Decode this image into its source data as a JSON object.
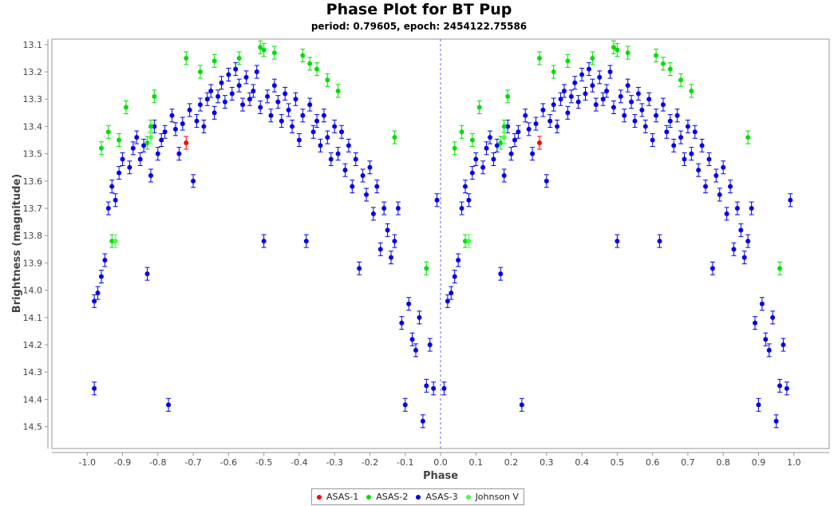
{
  "chart_data": {
    "type": "scatter",
    "title": "Phase Plot for BT Pup",
    "subtitle": "period: 0.79605, epoch: 2454122.75586",
    "xlabel": "Phase",
    "ylabel": "Brightness (magnitude)",
    "xlim": [
      -1.1,
      1.1
    ],
    "ylim": [
      14.58,
      13.08
    ],
    "y_inverted": true,
    "x_ticks": [
      -1.0,
      -0.9,
      -0.8,
      -0.7,
      -0.6,
      -0.5,
      -0.4,
      -0.3,
      -0.2,
      -0.1,
      0.0,
      0.1,
      0.2,
      0.3,
      0.4,
      0.5,
      0.6,
      0.7,
      0.8,
      0.9,
      1.0
    ],
    "x_tick_labels": [
      "-1.0",
      "-0.9",
      "-0.8",
      "-0.7",
      "-0.6",
      "-0.5",
      "-0.4",
      "-0.3",
      "-0.2",
      "-0.1",
      "0.0",
      "0.1",
      "0.2",
      "0.3",
      "0.4",
      "0.5",
      "0.6",
      "0.7",
      "0.8",
      "0.9",
      "1.0"
    ],
    "y_ticks": [
      13.1,
      13.2,
      13.3,
      13.4,
      13.5,
      13.6,
      13.7,
      13.8,
      13.9,
      14.0,
      14.1,
      14.2,
      14.3,
      14.4,
      14.5
    ],
    "y_tick_labels": [
      "13.1",
      "13.2",
      "13.3",
      "13.4",
      "13.5",
      "13.6",
      "13.7",
      "13.8",
      "13.9",
      "14.0",
      "14.1",
      "14.2",
      "14.3",
      "14.4",
      "14.5"
    ],
    "reference_line_x": 0.0,
    "grid": false,
    "legend_position": "bottom-center",
    "series": [
      {
        "name": "ASAS-1",
        "color": "#ff0000",
        "points": [
          [
            -0.72,
            13.46
          ],
          [
            0.28,
            13.46
          ]
        ]
      },
      {
        "name": "ASAS-2",
        "color": "#00e000",
        "points": [
          [
            -0.96,
            13.48
          ],
          [
            -0.94,
            13.42
          ],
          [
            -0.93,
            13.82
          ],
          [
            -0.91,
            13.45
          ],
          [
            -0.89,
            13.33
          ],
          [
            -0.83,
            13.46
          ],
          [
            -0.82,
            13.4
          ],
          [
            -0.81,
            13.29
          ],
          [
            -0.72,
            13.15
          ],
          [
            -0.68,
            13.2
          ],
          [
            -0.64,
            13.16
          ],
          [
            -0.57,
            13.15
          ],
          [
            -0.51,
            13.11
          ],
          [
            -0.5,
            13.12
          ],
          [
            -0.47,
            13.13
          ],
          [
            -0.39,
            13.14
          ],
          [
            -0.37,
            13.17
          ],
          [
            -0.35,
            13.19
          ],
          [
            -0.32,
            13.23
          ],
          [
            -0.29,
            13.27
          ],
          [
            -0.13,
            13.44
          ],
          [
            -0.04,
            13.92
          ],
          [
            0.04,
            13.48
          ],
          [
            0.06,
            13.42
          ],
          [
            0.07,
            13.82
          ],
          [
            0.09,
            13.45
          ],
          [
            0.11,
            13.33
          ],
          [
            0.17,
            13.46
          ],
          [
            0.18,
            13.4
          ],
          [
            0.19,
            13.29
          ],
          [
            0.28,
            13.15
          ],
          [
            0.32,
            13.2
          ],
          [
            0.36,
            13.16
          ],
          [
            0.43,
            13.15
          ],
          [
            0.49,
            13.11
          ],
          [
            0.5,
            13.12
          ],
          [
            0.53,
            13.13
          ],
          [
            0.61,
            13.14
          ],
          [
            0.63,
            13.17
          ],
          [
            0.65,
            13.19
          ],
          [
            0.68,
            13.23
          ],
          [
            0.71,
            13.27
          ],
          [
            0.87,
            13.44
          ],
          [
            0.96,
            13.92
          ]
        ]
      },
      {
        "name": "ASAS-3",
        "color": "#0000ee",
        "points": [
          [
            -0.98,
            14.36
          ],
          [
            -0.98,
            14.04
          ],
          [
            -0.97,
            14.01
          ],
          [
            -0.96,
            13.95
          ],
          [
            -0.95,
            13.89
          ],
          [
            -0.94,
            13.7
          ],
          [
            -0.93,
            13.62
          ],
          [
            -0.92,
            13.67
          ],
          [
            -0.91,
            13.57
          ],
          [
            -0.9,
            13.52
          ],
          [
            -0.88,
            13.55
          ],
          [
            -0.87,
            13.48
          ],
          [
            -0.86,
            13.44
          ],
          [
            -0.85,
            13.52
          ],
          [
            -0.84,
            13.47
          ],
          [
            -0.83,
            13.94
          ],
          [
            -0.82,
            13.58
          ],
          [
            -0.81,
            13.4
          ],
          [
            -0.8,
            13.5
          ],
          [
            -0.79,
            13.45
          ],
          [
            -0.78,
            13.42
          ],
          [
            -0.77,
            14.42
          ],
          [
            -0.76,
            13.36
          ],
          [
            -0.75,
            13.41
          ],
          [
            -0.74,
            13.5
          ],
          [
            -0.73,
            13.39
          ],
          [
            -0.71,
            13.34
          ],
          [
            -0.7,
            13.6
          ],
          [
            -0.69,
            13.38
          ],
          [
            -0.68,
            13.32
          ],
          [
            -0.67,
            13.4
          ],
          [
            -0.66,
            13.3
          ],
          [
            -0.65,
            13.27
          ],
          [
            -0.64,
            13.35
          ],
          [
            -0.63,
            13.29
          ],
          [
            -0.62,
            13.24
          ],
          [
            -0.61,
            13.31
          ],
          [
            -0.6,
            13.21
          ],
          [
            -0.59,
            13.28
          ],
          [
            -0.58,
            13.19
          ],
          [
            -0.57,
            13.25
          ],
          [
            -0.56,
            13.32
          ],
          [
            -0.55,
            13.22
          ],
          [
            -0.54,
            13.3
          ],
          [
            -0.53,
            13.27
          ],
          [
            -0.52,
            13.2
          ],
          [
            -0.51,
            13.33
          ],
          [
            -0.5,
            13.82
          ],
          [
            -0.49,
            13.29
          ],
          [
            -0.48,
            13.36
          ],
          [
            -0.47,
            13.25
          ],
          [
            -0.46,
            13.31
          ],
          [
            -0.45,
            13.38
          ],
          [
            -0.44,
            13.28
          ],
          [
            -0.43,
            13.34
          ],
          [
            -0.42,
            13.4
          ],
          [
            -0.41,
            13.3
          ],
          [
            -0.4,
            13.45
          ],
          [
            -0.39,
            13.36
          ],
          [
            -0.38,
            13.82
          ],
          [
            -0.37,
            13.32
          ],
          [
            -0.36,
            13.42
          ],
          [
            -0.35,
            13.38
          ],
          [
            -0.34,
            13.47
          ],
          [
            -0.33,
            13.36
          ],
          [
            -0.32,
            13.44
          ],
          [
            -0.31,
            13.52
          ],
          [
            -0.3,
            13.4
          ],
          [
            -0.29,
            13.5
          ],
          [
            -0.28,
            13.42
          ],
          [
            -0.27,
            13.56
          ],
          [
            -0.26,
            13.47
          ],
          [
            -0.25,
            13.62
          ],
          [
            -0.24,
            13.52
          ],
          [
            -0.23,
            13.92
          ],
          [
            -0.22,
            13.58
          ],
          [
            -0.21,
            13.65
          ],
          [
            -0.2,
            13.55
          ],
          [
            -0.19,
            13.72
          ],
          [
            -0.18,
            13.62
          ],
          [
            -0.17,
            13.85
          ],
          [
            -0.16,
            13.7
          ],
          [
            -0.15,
            13.78
          ],
          [
            -0.14,
            13.88
          ],
          [
            -0.13,
            13.82
          ],
          [
            -0.12,
            13.7
          ],
          [
            -0.11,
            14.12
          ],
          [
            -0.1,
            14.42
          ],
          [
            -0.09,
            14.05
          ],
          [
            -0.08,
            14.18
          ],
          [
            -0.07,
            14.22
          ],
          [
            -0.06,
            14.1
          ],
          [
            -0.05,
            14.48
          ],
          [
            -0.04,
            14.35
          ],
          [
            -0.03,
            14.2
          ],
          [
            -0.02,
            14.36
          ],
          [
            -0.01,
            13.67
          ],
          [
            0.01,
            14.36
          ],
          [
            0.02,
            14.04
          ],
          [
            0.03,
            14.01
          ],
          [
            0.04,
            13.95
          ],
          [
            0.05,
            13.89
          ],
          [
            0.06,
            13.7
          ],
          [
            0.07,
            13.62
          ],
          [
            0.08,
            13.67
          ],
          [
            0.09,
            13.57
          ],
          [
            0.1,
            13.52
          ],
          [
            0.12,
            13.55
          ],
          [
            0.13,
            13.48
          ],
          [
            0.14,
            13.44
          ],
          [
            0.15,
            13.52
          ],
          [
            0.16,
            13.47
          ],
          [
            0.17,
            13.94
          ],
          [
            0.18,
            13.58
          ],
          [
            0.19,
            13.4
          ],
          [
            0.2,
            13.5
          ],
          [
            0.21,
            13.45
          ],
          [
            0.22,
            13.42
          ],
          [
            0.23,
            14.42
          ],
          [
            0.24,
            13.36
          ],
          [
            0.25,
            13.41
          ],
          [
            0.26,
            13.5
          ],
          [
            0.27,
            13.39
          ],
          [
            0.29,
            13.34
          ],
          [
            0.3,
            13.6
          ],
          [
            0.31,
            13.38
          ],
          [
            0.32,
            13.32
          ],
          [
            0.33,
            13.4
          ],
          [
            0.34,
            13.3
          ],
          [
            0.35,
            13.27
          ],
          [
            0.36,
            13.35
          ],
          [
            0.37,
            13.29
          ],
          [
            0.38,
            13.24
          ],
          [
            0.39,
            13.31
          ],
          [
            0.4,
            13.21
          ],
          [
            0.41,
            13.28
          ],
          [
            0.42,
            13.19
          ],
          [
            0.43,
            13.25
          ],
          [
            0.44,
            13.32
          ],
          [
            0.45,
            13.22
          ],
          [
            0.46,
            13.3
          ],
          [
            0.47,
            13.27
          ],
          [
            0.48,
            13.2
          ],
          [
            0.49,
            13.33
          ],
          [
            0.5,
            13.82
          ],
          [
            0.51,
            13.29
          ],
          [
            0.52,
            13.36
          ],
          [
            0.53,
            13.25
          ],
          [
            0.54,
            13.31
          ],
          [
            0.55,
            13.38
          ],
          [
            0.56,
            13.28
          ],
          [
            0.57,
            13.34
          ],
          [
            0.58,
            13.4
          ],
          [
            0.59,
            13.3
          ],
          [
            0.6,
            13.45
          ],
          [
            0.61,
            13.36
          ],
          [
            0.62,
            13.82
          ],
          [
            0.63,
            13.32
          ],
          [
            0.64,
            13.42
          ],
          [
            0.65,
            13.38
          ],
          [
            0.66,
            13.47
          ],
          [
            0.67,
            13.36
          ],
          [
            0.68,
            13.44
          ],
          [
            0.69,
            13.52
          ],
          [
            0.7,
            13.4
          ],
          [
            0.71,
            13.5
          ],
          [
            0.72,
            13.42
          ],
          [
            0.73,
            13.56
          ],
          [
            0.74,
            13.47
          ],
          [
            0.75,
            13.62
          ],
          [
            0.76,
            13.52
          ],
          [
            0.77,
            13.92
          ],
          [
            0.78,
            13.58
          ],
          [
            0.79,
            13.65
          ],
          [
            0.8,
            13.55
          ],
          [
            0.81,
            13.72
          ],
          [
            0.82,
            13.62
          ],
          [
            0.83,
            13.85
          ],
          [
            0.84,
            13.7
          ],
          [
            0.85,
            13.78
          ],
          [
            0.86,
            13.88
          ],
          [
            0.87,
            13.82
          ],
          [
            0.88,
            13.7
          ],
          [
            0.89,
            14.12
          ],
          [
            0.9,
            14.42
          ],
          [
            0.91,
            14.05
          ],
          [
            0.92,
            14.18
          ],
          [
            0.93,
            14.22
          ],
          [
            0.94,
            14.1
          ],
          [
            0.95,
            14.48
          ],
          [
            0.96,
            14.35
          ],
          [
            0.97,
            14.2
          ],
          [
            0.98,
            14.36
          ],
          [
            0.99,
            13.67
          ]
        ]
      },
      {
        "name": "Johnson V",
        "color": "#44ff44",
        "points": [
          [
            -0.92,
            13.82
          ],
          [
            -0.82,
            13.44
          ],
          [
            0.08,
            13.82
          ],
          [
            0.18,
            13.44
          ]
        ]
      }
    ]
  }
}
